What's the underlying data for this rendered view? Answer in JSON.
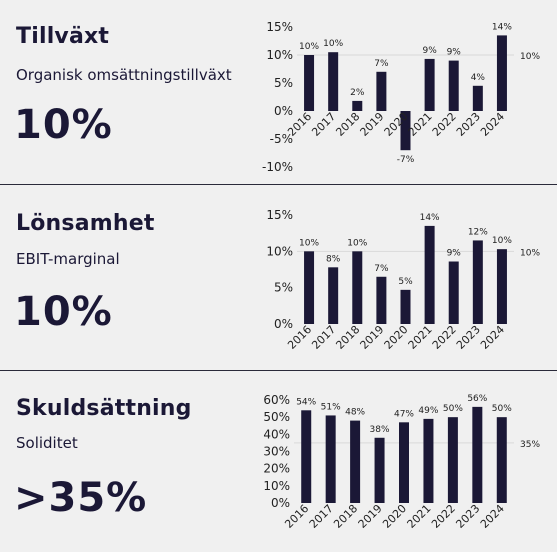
{
  "sections": [
    {
      "title": "Tillväxt",
      "subtitle": "Organisk omsättningstillväxt",
      "value": "10%"
    },
    {
      "title": "Lönsamhet",
      "subtitle": "EBIT-marginal",
      "value": "10%"
    },
    {
      "title": "Skuldsättning",
      "subtitle": "Soliditet",
      "value": ">35%"
    }
  ],
  "colors": {
    "bar": "#1b1836",
    "target_line": "#d9d9d9",
    "background": "#f0f0f0"
  },
  "chart_data": [
    {
      "type": "bar",
      "categories": [
        "2016",
        "2017",
        "2018",
        "2019",
        "2020",
        "2021",
        "2022",
        "2023",
        "2024"
      ],
      "values": [
        10,
        10.5,
        1.8,
        7,
        -7,
        9.3,
        9,
        4.5,
        13.5
      ],
      "data_labels": [
        "10%",
        "10%",
        "2%",
        "7%",
        "-7%",
        "9%",
        "9%",
        "4%",
        "14%"
      ],
      "target": 10,
      "target_label": "10%",
      "ylim": [
        -10,
        15
      ],
      "yticks": [
        15,
        10,
        5,
        0,
        -5,
        -10
      ],
      "ytick_labels": [
        "15%",
        "10%",
        "5%",
        "0%",
        "-5%",
        "-10%"
      ],
      "title": "",
      "xlabel": "",
      "ylabel": ""
    },
    {
      "type": "bar",
      "categories": [
        "2016",
        "2017",
        "2018",
        "2019",
        "2020",
        "2021",
        "2022",
        "2023",
        "2024"
      ],
      "values": [
        10,
        7.8,
        10,
        6.5,
        4.7,
        13.5,
        8.6,
        11.5,
        10.3
      ],
      "data_labels": [
        "10%",
        "8%",
        "10%",
        "7%",
        "5%",
        "14%",
        "9%",
        "12%",
        "10%"
      ],
      "target": 10,
      "target_label": "10%",
      "ylim": [
        0,
        15
      ],
      "yticks": [
        15,
        10,
        5,
        0
      ],
      "ytick_labels": [
        "15%",
        "10%",
        "5%",
        "0%"
      ],
      "title": "",
      "xlabel": "",
      "ylabel": ""
    },
    {
      "type": "bar",
      "categories": [
        "2016",
        "2017",
        "2018",
        "2019",
        "2020",
        "2021",
        "2022",
        "2023",
        "2024"
      ],
      "values": [
        54,
        51,
        48,
        38,
        47,
        49,
        50,
        56,
        50
      ],
      "data_labels": [
        "54%",
        "51%",
        "48%",
        "38%",
        "47%",
        "49%",
        "50%",
        "56%",
        "50%"
      ],
      "target": 35,
      "target_label": "35%",
      "ylim": [
        0,
        60
      ],
      "yticks": [
        60,
        50,
        40,
        30,
        20,
        10,
        0
      ],
      "ytick_labels": [
        "60%",
        "50%",
        "40%",
        "30%",
        "20%",
        "10%",
        "0%"
      ],
      "title": "",
      "xlabel": "",
      "ylabel": ""
    }
  ]
}
